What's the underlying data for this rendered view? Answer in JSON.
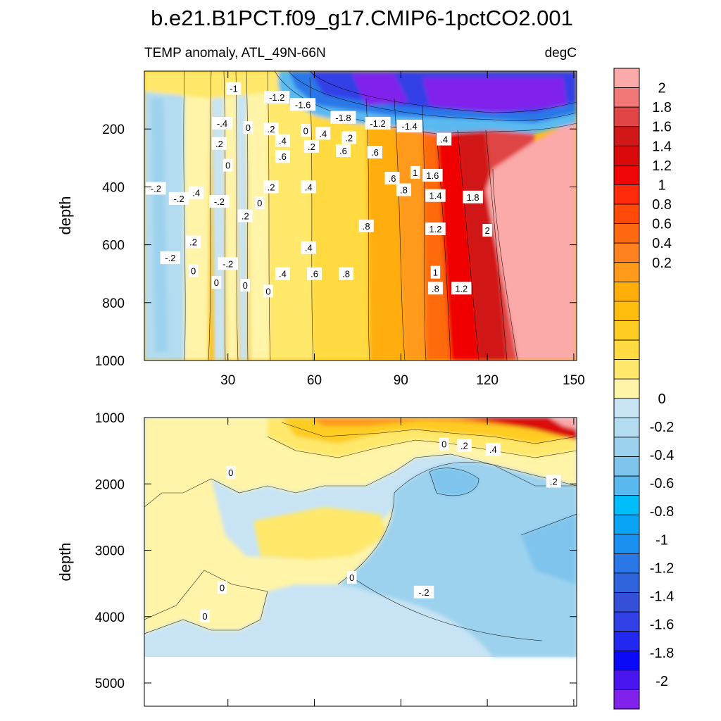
{
  "figure": {
    "title": "b.e21.B1PCT.f09_g17.CMIP6-1pctCO2.001",
    "subtitle_left": "TEMP anomaly, ATL_49N-66N",
    "subtitle_right": "degC"
  },
  "chart_data": [
    {
      "type": "heatmap",
      "panel": "upper",
      "ylabel": "depth",
      "xlabel": "",
      "xlim": [
        1,
        151
      ],
      "ylim": [
        1000,
        0
      ],
      "xticks": [
        30,
        60,
        90,
        120,
        150
      ],
      "yticks": [
        200,
        400,
        600,
        800,
        1000
      ],
      "description_values": "time vs depth temperature anomaly (degC); contour interval 0.2",
      "contour_labels": [
        {
          "x": 32,
          "y": 60,
          "text": "-1"
        },
        {
          "x": 47,
          "y": 90,
          "text": "-1.2"
        },
        {
          "x": 56,
          "y": 115,
          "text": "-1.6"
        },
        {
          "x": 70,
          "y": 160,
          "text": "-1.8"
        },
        {
          "x": 82,
          "y": 180,
          "text": "-1.2"
        },
        {
          "x": 93,
          "y": 190,
          "text": "-1.4"
        },
        {
          "x": 28,
          "y": 180,
          "text": "-.4"
        },
        {
          "x": 37,
          "y": 195,
          "text": "0"
        },
        {
          "x": 45,
          "y": 200,
          "text": ".2"
        },
        {
          "x": 57,
          "y": 205,
          "text": "0"
        },
        {
          "x": 63,
          "y": 215,
          "text": ".4"
        },
        {
          "x": 72,
          "y": 230,
          "text": ".2"
        },
        {
          "x": 105,
          "y": 235,
          "text": ".4"
        },
        {
          "x": 49,
          "y": 240,
          "text": ".4"
        },
        {
          "x": 27,
          "y": 250,
          "text": ".2"
        },
        {
          "x": 59,
          "y": 260,
          "text": ".2"
        },
        {
          "x": 70,
          "y": 275,
          "text": ".6"
        },
        {
          "x": 81,
          "y": 280,
          "text": ".6"
        },
        {
          "x": 49,
          "y": 295,
          "text": ".6"
        },
        {
          "x": 30,
          "y": 325,
          "text": "0"
        },
        {
          "x": 101,
          "y": 360,
          "text": "1.6"
        },
        {
          "x": 95,
          "y": 350,
          "text": "1"
        },
        {
          "x": 87,
          "y": 370,
          "text": ".6"
        },
        {
          "x": 5,
          "y": 405,
          "text": "-.2"
        },
        {
          "x": 19,
          "y": 420,
          "text": ".4"
        },
        {
          "x": 45,
          "y": 400,
          "text": ".2"
        },
        {
          "x": 58,
          "y": 400,
          "text": ".4"
        },
        {
          "x": 91,
          "y": 410,
          "text": ".8"
        },
        {
          "x": 102,
          "y": 430,
          "text": "1.4"
        },
        {
          "x": 115,
          "y": 435,
          "text": "1.8"
        },
        {
          "x": 13,
          "y": 440,
          "text": "-.2"
        },
        {
          "x": 27,
          "y": 450,
          "text": "-.2"
        },
        {
          "x": 41,
          "y": 455,
          "text": "0"
        },
        {
          "x": 36,
          "y": 500,
          "text": ".2"
        },
        {
          "x": 78,
          "y": 535,
          "text": ".8"
        },
        {
          "x": 102,
          "y": 545,
          "text": "1.2"
        },
        {
          "x": 120,
          "y": 550,
          "text": "2"
        },
        {
          "x": 18,
          "y": 590,
          "text": ".2"
        },
        {
          "x": 58,
          "y": 610,
          "text": ".4"
        },
        {
          "x": 10,
          "y": 645,
          "text": "-.2"
        },
        {
          "x": 30,
          "y": 665,
          "text": "-.2"
        },
        {
          "x": 18,
          "y": 690,
          "text": "0"
        },
        {
          "x": 49,
          "y": 700,
          "text": ".4"
        },
        {
          "x": 60,
          "y": 700,
          "text": ".6"
        },
        {
          "x": 71,
          "y": 700,
          "text": ".8"
        },
        {
          "x": 102,
          "y": 695,
          "text": "1"
        },
        {
          "x": 26,
          "y": 730,
          "text": "0"
        },
        {
          "x": 36,
          "y": 740,
          "text": "0"
        },
        {
          "x": 44,
          "y": 760,
          "text": "0"
        },
        {
          "x": 102,
          "y": 750,
          "text": ".8"
        },
        {
          "x": 111,
          "y": 750,
          "text": "1.2"
        }
      ]
    },
    {
      "type": "heatmap",
      "panel": "lower",
      "ylabel": "depth",
      "xlabel": "",
      "xlim": [
        1,
        151
      ],
      "ylim": [
        5350,
        1000
      ],
      "yticks": [
        1000,
        2000,
        3000,
        4000,
        5000
      ],
      "contour_labels": [
        {
          "x": 105,
          "y": 1400,
          "text": "0"
        },
        {
          "x": 112,
          "y": 1420,
          "text": ".2"
        },
        {
          "x": 122,
          "y": 1480,
          "text": ".4"
        },
        {
          "x": 143,
          "y": 1960,
          "text": ".2"
        },
        {
          "x": 31,
          "y": 1830,
          "text": "0"
        },
        {
          "x": 73,
          "y": 3410,
          "text": "0"
        },
        {
          "x": 28,
          "y": 3560,
          "text": "0"
        },
        {
          "x": 98,
          "y": 3630,
          "text": "-.2"
        },
        {
          "x": 22,
          "y": 3990,
          "text": "0"
        }
      ]
    }
  ],
  "colorbar": {
    "labels": [
      "2",
      "1.8",
      "1.6",
      "1.4",
      "1.2",
      "1",
      "0.8",
      "0.6",
      "0.4",
      "0.2",
      "0",
      "-0.2",
      "-0.4",
      "-0.6",
      "-0.8",
      "-1",
      "-1.2",
      "-1.4",
      "-1.6",
      "-1.8",
      "-2"
    ],
    "colors": [
      "#FCA9A9",
      "#F27777",
      "#E04444",
      "#D01818",
      "#DA0A0A",
      "#F00606",
      "#FF2B0A",
      "#FF4A0A",
      "#FF6A10",
      "#FF8220",
      "#FF9A1A",
      "#FFAE0A",
      "#FFBD0E",
      "#FFCC22",
      "#FFDA40",
      "#FFE86A",
      "#FFF4A8",
      "#C8E4F4",
      "#B4DCF0",
      "#9CD2EE",
      "#7EC4EC",
      "#5ABAF0",
      "#00BEFA",
      "#0AA4F6",
      "#1A90F0",
      "#2A78E8",
      "#3064DC",
      "#3550D8",
      "#3040E6",
      "#2228F0",
      "#0A0AF8",
      "#4A16F0",
      "#8022EC"
    ]
  }
}
